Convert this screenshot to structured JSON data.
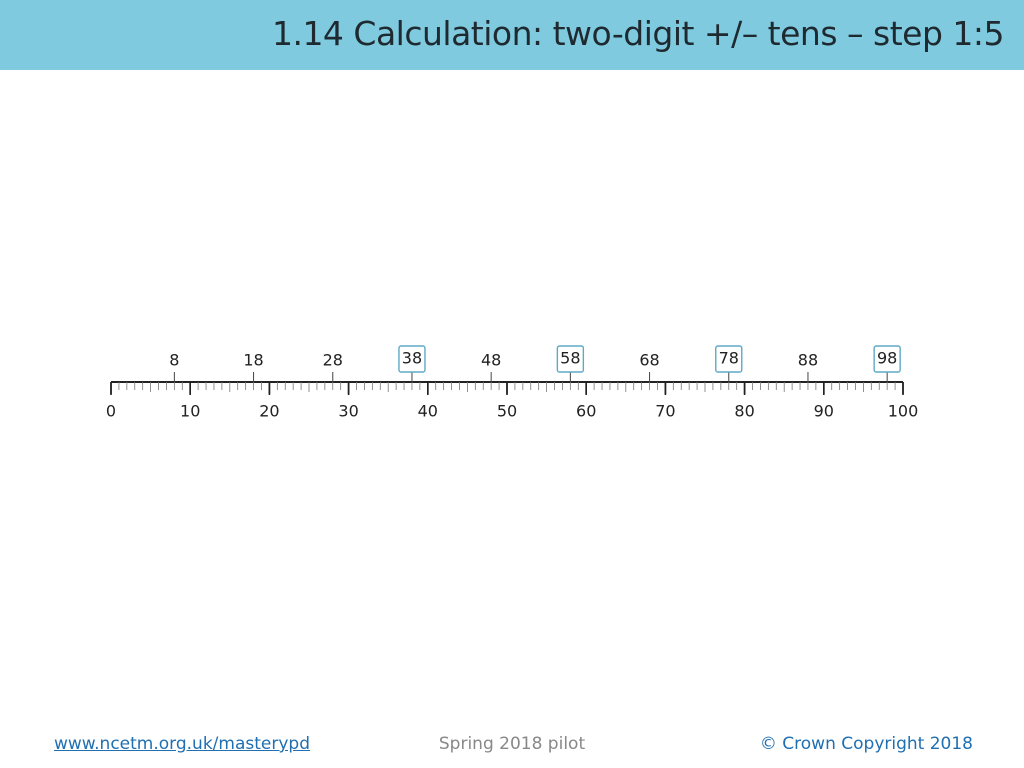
{
  "header": {
    "title": "1.14 Calculation: two-digit +/– tens – step 1:5"
  },
  "number_line": {
    "scale_labels": [
      0,
      10,
      20,
      30,
      40,
      50,
      60,
      70,
      80,
      90,
      100
    ],
    "above_labels": [
      {
        "value": 8,
        "boxed": false
      },
      {
        "value": 18,
        "boxed": false
      },
      {
        "value": 28,
        "boxed": false
      },
      {
        "value": 38,
        "boxed": true
      },
      {
        "value": 48,
        "boxed": false
      },
      {
        "value": 58,
        "boxed": true
      },
      {
        "value": 68,
        "boxed": false
      },
      {
        "value": 78,
        "boxed": true
      },
      {
        "value": 88,
        "boxed": false
      },
      {
        "value": 98,
        "boxed": true
      }
    ]
  },
  "footer": {
    "link": "www.ncetm.org.uk/masterypd",
    "center": "Spring 2018 pilot",
    "copyright": "© Crown Copyright 2018"
  }
}
